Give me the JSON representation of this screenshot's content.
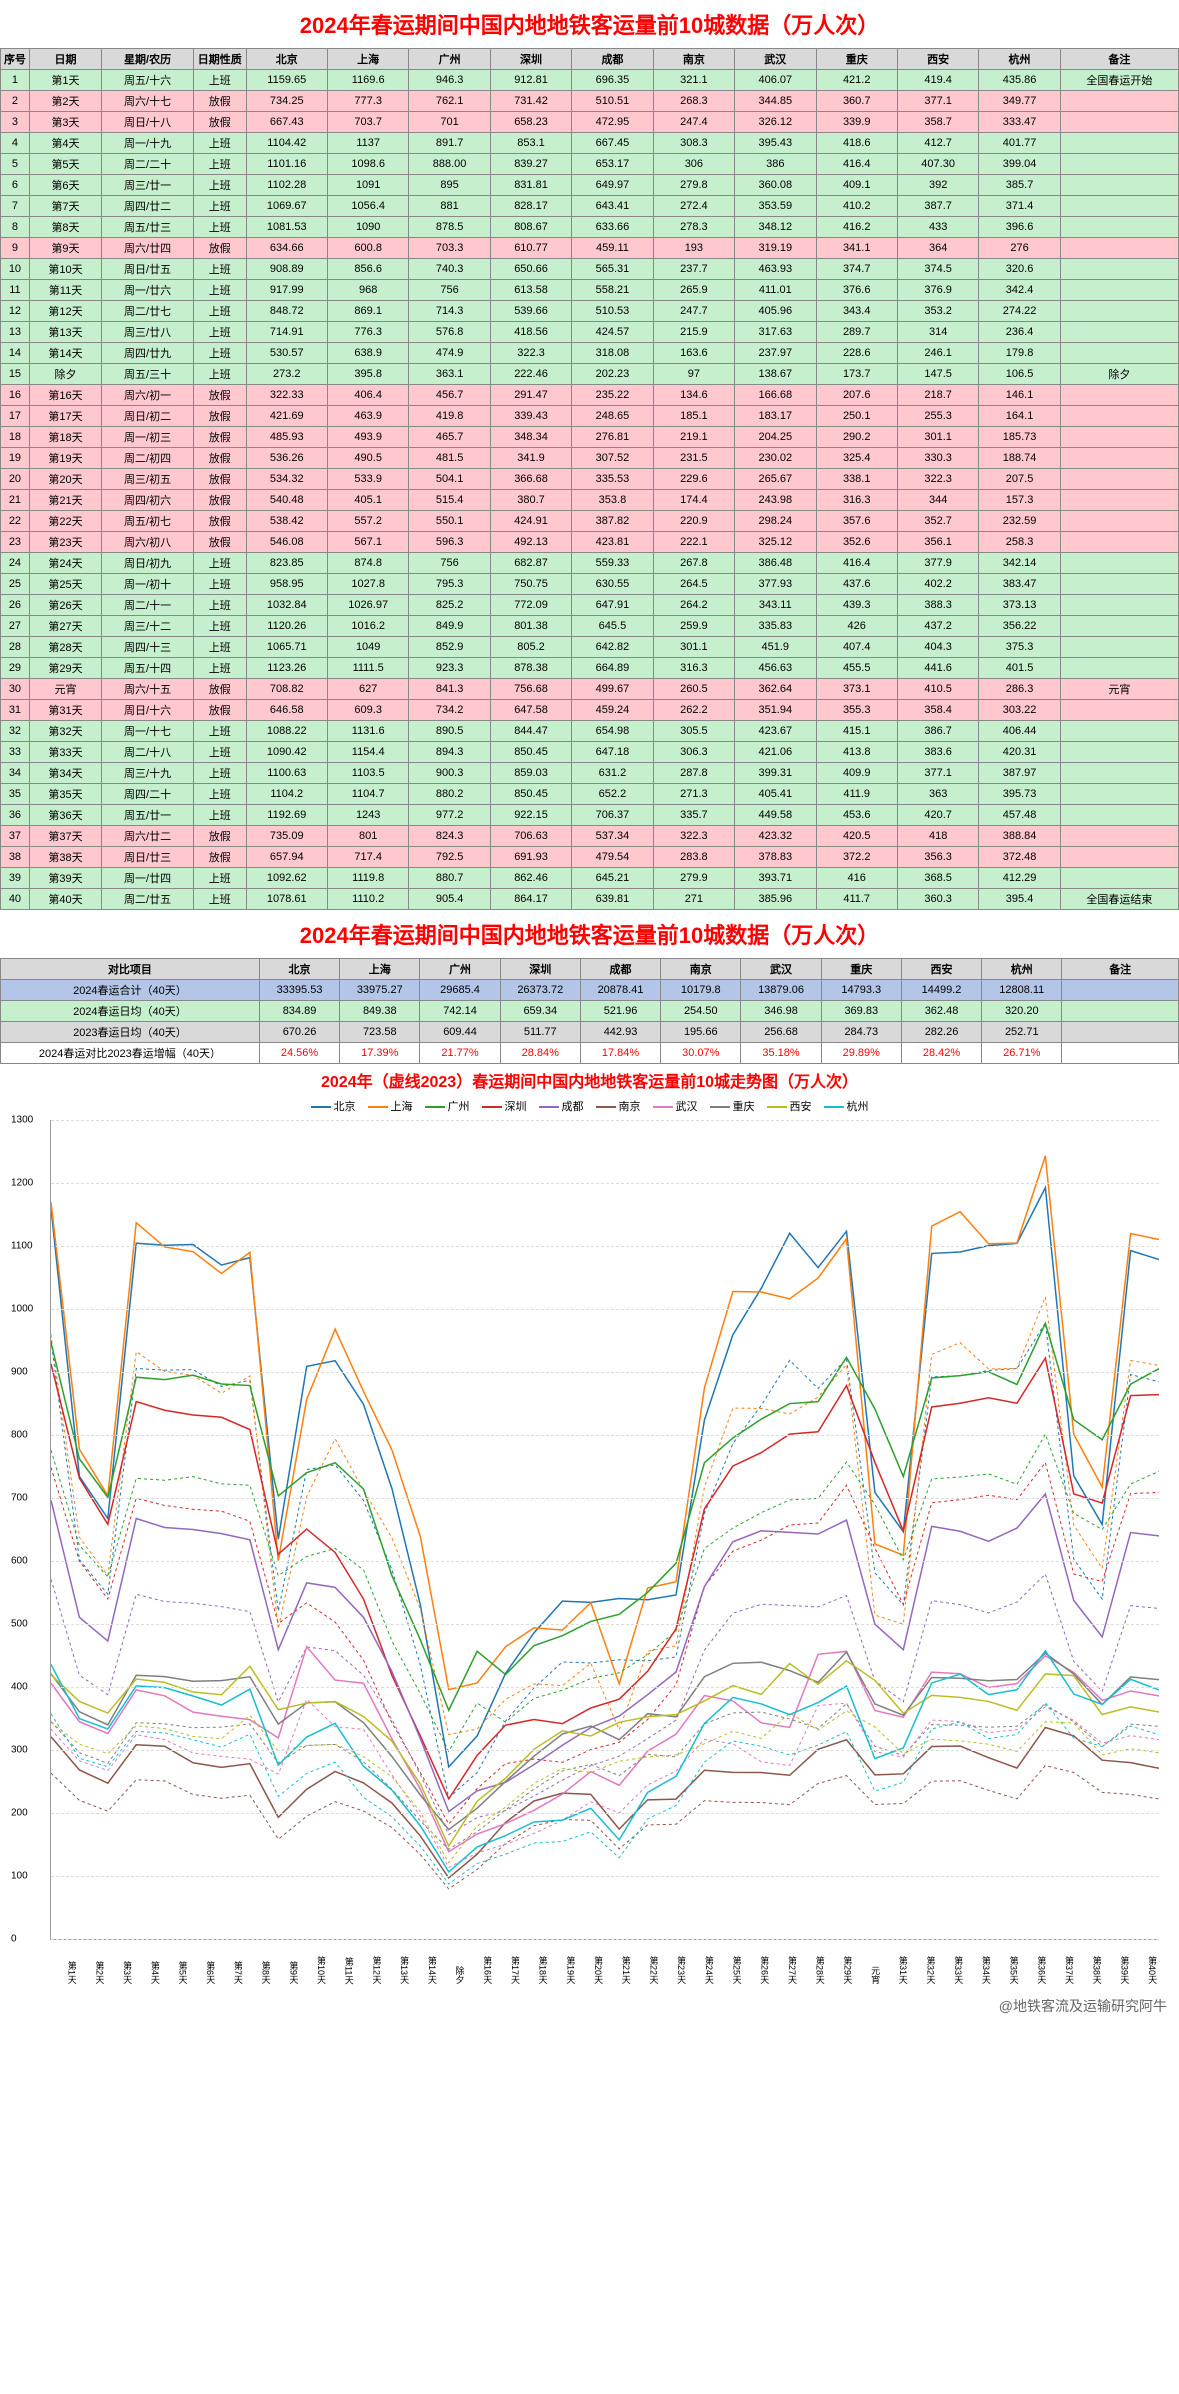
{
  "title": "2024年春运期间中国内地地铁客运量前10城数据（万人次）",
  "headers": [
    "序号",
    "日期",
    "星期/农历",
    "日期性质",
    "北京",
    "上海",
    "广州",
    "深圳",
    "成都",
    "南京",
    "武汉",
    "重庆",
    "西安",
    "杭州",
    "备注"
  ],
  "cities": [
    "北京",
    "上海",
    "广州",
    "深圳",
    "成都",
    "南京",
    "武汉",
    "重庆",
    "西安",
    "杭州"
  ],
  "rows": [
    {
      "n": 1,
      "d": "第1天",
      "w": "周五/十六",
      "t": "上班",
      "v": [
        "1159.65",
        "1169.6",
        "946.3",
        "912.81",
        "696.35",
        "321.1",
        "406.07",
        "421.2",
        "419.4",
        "435.86"
      ],
      "note": "全国春运开始"
    },
    {
      "n": 2,
      "d": "第2天",
      "w": "周六/十七",
      "t": "放假",
      "v": [
        "734.25",
        "777.3",
        "762.1",
        "731.42",
        "510.51",
        "268.3",
        "344.85",
        "360.7",
        "377.1",
        "349.77"
      ],
      "note": ""
    },
    {
      "n": 3,
      "d": "第3天",
      "w": "周日/十八",
      "t": "放假",
      "v": [
        "667.43",
        "703.7",
        "701",
        "658.23",
        "472.95",
        "247.4",
        "326.12",
        "339.9",
        "358.7",
        "333.47"
      ],
      "note": ""
    },
    {
      "n": 4,
      "d": "第4天",
      "w": "周一/十九",
      "t": "上班",
      "v": [
        "1104.42",
        "1137",
        "891.7",
        "853.1",
        "667.45",
        "308.3",
        "395.43",
        "418.6",
        "412.7",
        "401.77"
      ],
      "note": ""
    },
    {
      "n": 5,
      "d": "第5天",
      "w": "周二/二十",
      "t": "上班",
      "v": [
        "1101.16",
        "1098.6",
        "888.00",
        "839.27",
        "653.17",
        "306",
        "386",
        "416.4",
        "407.30",
        "399.04"
      ],
      "note": ""
    },
    {
      "n": 6,
      "d": "第6天",
      "w": "周三/廿一",
      "t": "上班",
      "v": [
        "1102.28",
        "1091",
        "895",
        "831.81",
        "649.97",
        "279.8",
        "360.08",
        "409.1",
        "392",
        "385.7"
      ],
      "note": ""
    },
    {
      "n": 7,
      "d": "第7天",
      "w": "周四/廿二",
      "t": "上班",
      "v": [
        "1069.67",
        "1056.4",
        "881",
        "828.17",
        "643.41",
        "272.4",
        "353.59",
        "410.2",
        "387.7",
        "371.4"
      ],
      "note": ""
    },
    {
      "n": 8,
      "d": "第8天",
      "w": "周五/廿三",
      "t": "上班",
      "v": [
        "1081.53",
        "1090",
        "878.5",
        "808.67",
        "633.66",
        "278.3",
        "348.12",
        "416.2",
        "433",
        "396.6"
      ],
      "note": ""
    },
    {
      "n": 9,
      "d": "第9天",
      "w": "周六/廿四",
      "t": "放假",
      "v": [
        "634.66",
        "600.8",
        "703.3",
        "610.77",
        "459.11",
        "193",
        "319.19",
        "341.1",
        "364",
        "276"
      ],
      "note": ""
    },
    {
      "n": 10,
      "d": "第10天",
      "w": "周日/廿五",
      "t": "上班",
      "v": [
        "908.89",
        "856.6",
        "740.3",
        "650.66",
        "565.31",
        "237.7",
        "463.93",
        "374.7",
        "374.5",
        "320.6"
      ],
      "note": ""
    },
    {
      "n": 11,
      "d": "第11天",
      "w": "周一/廿六",
      "t": "上班",
      "v": [
        "917.99",
        "968",
        "756",
        "613.58",
        "558.21",
        "265.9",
        "411.01",
        "376.6",
        "376.9",
        "342.4"
      ],
      "note": ""
    },
    {
      "n": 12,
      "d": "第12天",
      "w": "周二/廿七",
      "t": "上班",
      "v": [
        "848.72",
        "869.1",
        "714.3",
        "539.66",
        "510.53",
        "247.7",
        "405.96",
        "343.4",
        "353.2",
        "274.22"
      ],
      "note": ""
    },
    {
      "n": 13,
      "d": "第13天",
      "w": "周三/廿八",
      "t": "上班",
      "v": [
        "714.91",
        "776.3",
        "576.8",
        "418.56",
        "424.57",
        "215.9",
        "317.63",
        "289.7",
        "314",
        "236.4"
      ],
      "note": ""
    },
    {
      "n": 14,
      "d": "第14天",
      "w": "周四/廿九",
      "t": "上班",
      "v": [
        "530.57",
        "638.9",
        "474.9",
        "322.3",
        "318.08",
        "163.6",
        "237.97",
        "228.6",
        "246.1",
        "179.8"
      ],
      "note": ""
    },
    {
      "n": 15,
      "d": "除夕",
      "w": "周五/三十",
      "t": "上班",
      "v": [
        "273.2",
        "395.8",
        "363.1",
        "222.46",
        "202.23",
        "97",
        "138.67",
        "173.7",
        "147.5",
        "106.5"
      ],
      "note": "除夕"
    },
    {
      "n": 16,
      "d": "第16天",
      "w": "周六/初一",
      "t": "放假",
      "v": [
        "322.33",
        "406.4",
        "456.7",
        "291.47",
        "235.22",
        "134.6",
        "166.68",
        "207.6",
        "218.7",
        "146.1"
      ],
      "note": ""
    },
    {
      "n": 17,
      "d": "第17天",
      "w": "周日/初二",
      "t": "放假",
      "v": [
        "421.69",
        "463.9",
        "419.8",
        "339.43",
        "248.65",
        "185.1",
        "183.17",
        "250.1",
        "255.3",
        "164.1"
      ],
      "note": ""
    },
    {
      "n": 18,
      "d": "第18天",
      "w": "周一/初三",
      "t": "放假",
      "v": [
        "485.93",
        "493.9",
        "465.7",
        "348.34",
        "276.81",
        "219.1",
        "204.25",
        "290.2",
        "301.1",
        "185.73"
      ],
      "note": ""
    },
    {
      "n": 19,
      "d": "第19天",
      "w": "周二/初四",
      "t": "放假",
      "v": [
        "536.26",
        "490.5",
        "481.5",
        "341.9",
        "307.52",
        "231.5",
        "230.02",
        "325.4",
        "330.3",
        "188.74"
      ],
      "note": ""
    },
    {
      "n": 20,
      "d": "第20天",
      "w": "周三/初五",
      "t": "放假",
      "v": [
        "534.32",
        "533.9",
        "504.1",
        "366.68",
        "335.53",
        "229.6",
        "265.67",
        "338.1",
        "322.3",
        "207.5"
      ],
      "note": ""
    },
    {
      "n": 21,
      "d": "第21天",
      "w": "周四/初六",
      "t": "放假",
      "v": [
        "540.48",
        "405.1",
        "515.4",
        "380.7",
        "353.8",
        "174.4",
        "243.98",
        "316.3",
        "344",
        "157.3"
      ],
      "note": ""
    },
    {
      "n": 22,
      "d": "第22天",
      "w": "周五/初七",
      "t": "放假",
      "v": [
        "538.42",
        "557.2",
        "550.1",
        "424.91",
        "387.82",
        "220.9",
        "298.24",
        "357.6",
        "352.7",
        "232.59"
      ],
      "note": ""
    },
    {
      "n": 23,
      "d": "第23天",
      "w": "周六/初八",
      "t": "放假",
      "v": [
        "546.08",
        "567.1",
        "596.3",
        "492.13",
        "423.81",
        "222.1",
        "325.12",
        "352.6",
        "356.1",
        "258.3"
      ],
      "note": ""
    },
    {
      "n": 24,
      "d": "第24天",
      "w": "周日/初九",
      "t": "上班",
      "v": [
        "823.85",
        "874.8",
        "756",
        "682.87",
        "559.33",
        "267.8",
        "386.48",
        "416.4",
        "377.9",
        "342.14"
      ],
      "note": ""
    },
    {
      "n": 25,
      "d": "第25天",
      "w": "周一/初十",
      "t": "上班",
      "v": [
        "958.95",
        "1027.8",
        "795.3",
        "750.75",
        "630.55",
        "264.5",
        "377.93",
        "437.6",
        "402.2",
        "383.47"
      ],
      "note": ""
    },
    {
      "n": 26,
      "d": "第26天",
      "w": "周二/十一",
      "t": "上班",
      "v": [
        "1032.84",
        "1026.97",
        "825.2",
        "772.09",
        "647.91",
        "264.2",
        "343.11",
        "439.3",
        "388.3",
        "373.13"
      ],
      "note": ""
    },
    {
      "n": 27,
      "d": "第27天",
      "w": "周三/十二",
      "t": "上班",
      "v": [
        "1120.26",
        "1016.2",
        "849.9",
        "801.38",
        "645.5",
        "259.9",
        "335.83",
        "426",
        "437.2",
        "356.22"
      ],
      "note": ""
    },
    {
      "n": 28,
      "d": "第28天",
      "w": "周四/十三",
      "t": "上班",
      "v": [
        "1065.71",
        "1049",
        "852.9",
        "805.2",
        "642.82",
        "301.1",
        "451.9",
        "407.4",
        "404.3",
        "375.3"
      ],
      "note": ""
    },
    {
      "n": 29,
      "d": "第29天",
      "w": "周五/十四",
      "t": "上班",
      "v": [
        "1123.26",
        "1111.5",
        "923.3",
        "878.38",
        "664.89",
        "316.3",
        "456.63",
        "455.5",
        "441.6",
        "401.5"
      ],
      "note": ""
    },
    {
      "n": 30,
      "d": "元宵",
      "w": "周六/十五",
      "t": "放假",
      "v": [
        "708.82",
        "627",
        "841.3",
        "756.68",
        "499.67",
        "260.5",
        "362.64",
        "373.1",
        "410.5",
        "286.3"
      ],
      "note": "元宵"
    },
    {
      "n": 31,
      "d": "第31天",
      "w": "周日/十六",
      "t": "放假",
      "v": [
        "646.58",
        "609.3",
        "734.2",
        "647.58",
        "459.24",
        "262.2",
        "351.94",
        "355.3",
        "358.4",
        "303.22"
      ],
      "note": ""
    },
    {
      "n": 32,
      "d": "第32天",
      "w": "周一/十七",
      "t": "上班",
      "v": [
        "1088.22",
        "1131.6",
        "890.5",
        "844.47",
        "654.98",
        "305.5",
        "423.67",
        "415.1",
        "386.7",
        "406.44"
      ],
      "note": ""
    },
    {
      "n": 33,
      "d": "第33天",
      "w": "周二/十八",
      "t": "上班",
      "v": [
        "1090.42",
        "1154.4",
        "894.3",
        "850.45",
        "647.18",
        "306.3",
        "421.06",
        "413.8",
        "383.6",
        "420.31"
      ],
      "note": ""
    },
    {
      "n": 34,
      "d": "第34天",
      "w": "周三/十九",
      "t": "上班",
      "v": [
        "1100.63",
        "1103.5",
        "900.3",
        "859.03",
        "631.2",
        "287.8",
        "399.31",
        "409.9",
        "377.1",
        "387.97"
      ],
      "note": ""
    },
    {
      "n": 35,
      "d": "第35天",
      "w": "周四/二十",
      "t": "上班",
      "v": [
        "1104.2",
        "1104.7",
        "880.2",
        "850.45",
        "652.2",
        "271.3",
        "405.41",
        "411.9",
        "363",
        "395.73"
      ],
      "note": ""
    },
    {
      "n": 36,
      "d": "第36天",
      "w": "周五/廿一",
      "t": "上班",
      "v": [
        "1192.69",
        "1243",
        "977.2",
        "922.15",
        "706.37",
        "335.7",
        "449.58",
        "453.6",
        "420.7",
        "457.48"
      ],
      "note": ""
    },
    {
      "n": 37,
      "d": "第37天",
      "w": "周六/廿二",
      "t": "放假",
      "v": [
        "735.09",
        "801",
        "824.3",
        "706.63",
        "537.34",
        "322.3",
        "423.32",
        "420.5",
        "418",
        "388.84"
      ],
      "note": ""
    },
    {
      "n": 38,
      "d": "第38天",
      "w": "周日/廿三",
      "t": "放假",
      "v": [
        "657.94",
        "717.4",
        "792.5",
        "691.93",
        "479.54",
        "283.8",
        "378.83",
        "372.2",
        "356.3",
        "372.48"
      ],
      "note": ""
    },
    {
      "n": 39,
      "d": "第39天",
      "w": "周一/廿四",
      "t": "上班",
      "v": [
        "1092.62",
        "1119.8",
        "880.7",
        "862.46",
        "645.21",
        "279.9",
        "393.71",
        "416",
        "368.5",
        "412.29"
      ],
      "note": ""
    },
    {
      "n": 40,
      "d": "第40天",
      "w": "周二/廿五",
      "t": "上班",
      "v": [
        "1078.61",
        "1110.2",
        "905.4",
        "864.17",
        "639.81",
        "271",
        "385.96",
        "411.7",
        "360.3",
        "395.4"
      ],
      "note": "全国春运结束"
    }
  ],
  "summary": {
    "labels": [
      "对比项目",
      "2024春运合计（40天）",
      "2024春运日均（40天）",
      "2023春运日均（40天）",
      "2024春运对比2023春运增幅（40天）"
    ],
    "total": [
      "33395.53",
      "33975.27",
      "29685.4",
      "26373.72",
      "20878.41",
      "10179.8",
      "13879.06",
      "14793.3",
      "14499.2",
      "12808.11"
    ],
    "avg24": [
      "834.89",
      "849.38",
      "742.14",
      "659.34",
      "521.96",
      "254.50",
      "346.98",
      "369.83",
      "362.48",
      "320.20"
    ],
    "avg23": [
      "670.26",
      "723.58",
      "609.44",
      "511.77",
      "442.93",
      "195.66",
      "256.68",
      "284.73",
      "282.26",
      "252.71"
    ],
    "pct": [
      "24.56%",
      "17.39%",
      "21.77%",
      "28.84%",
      "17.84%",
      "30.07%",
      "35.18%",
      "29.89%",
      "28.42%",
      "26.71%"
    ]
  },
  "chart": {
    "title": "2024年（虚线2023）春运期间中国内地地铁客运量前10城走势图（万人次）",
    "ylim": [
      0,
      1300
    ],
    "ytick_step": 100,
    "colors": [
      "#1f77b4",
      "#ff7f0e",
      "#2ca02c",
      "#d62728",
      "#9467bd",
      "#8c564b",
      "#e377c2",
      "#7f7f7f",
      "#bcbd22",
      "#17becf"
    ],
    "city_colors": {
      "北京": "#1f77b4",
      "上海": "#ff7f0e",
      "广州": "#2ca02c",
      "深圳": "#d62728",
      "成都": "#9467bd",
      "南京": "#8c564b",
      "武汉": "#e377c2",
      "重庆": "#7f7f7f",
      "西安": "#bcbd22",
      "杭州": "#17becf"
    },
    "xlabels": [
      "第1天",
      "第2天",
      "第3天",
      "第4天",
      "第5天",
      "第6天",
      "第7天",
      "第8天",
      "第9天",
      "第10天",
      "第11天",
      "第12天",
      "第13天",
      "第14天",
      "除夕",
      "第16天",
      "第17天",
      "第18天",
      "第19天",
      "第20天",
      "第21天",
      "第22天",
      "第23天",
      "第24天",
      "第25天",
      "第26天",
      "第27天",
      "第28天",
      "第29天",
      "元宵",
      "第31天",
      "第32天",
      "第33天",
      "第34天",
      "第35天",
      "第36天",
      "第37天",
      "第38天",
      "第39天",
      "第40天"
    ]
  },
  "footer": "@地铁客流及运输研究阿牛"
}
